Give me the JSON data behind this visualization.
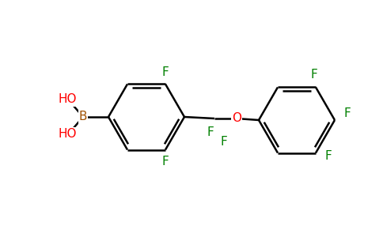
{
  "background_color": "#ffffff",
  "bond_color": "#000000",
  "atom_colors": {
    "F": "#008000",
    "B": "#a05000",
    "O": "#ff0000",
    "HO": "#ff0000"
  },
  "line_width": 1.8,
  "font_size": 11
}
